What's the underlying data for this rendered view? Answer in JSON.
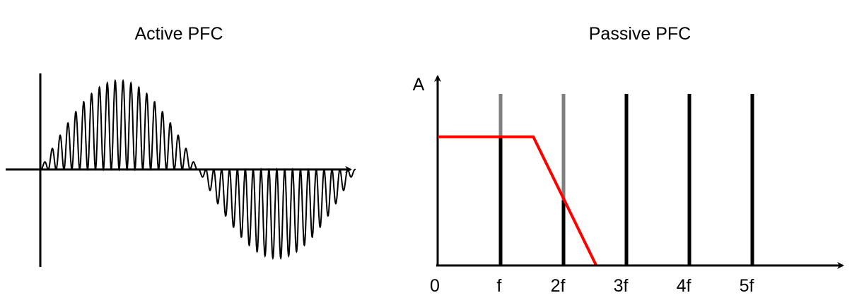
{
  "left_panel": {
    "title": "Active PFC"
  },
  "right_panel": {
    "title": "Passive PFC",
    "y_axis_label": "A",
    "x_tick_labels": [
      "0",
      "f",
      "2f",
      "3f",
      "4f",
      "5f"
    ],
    "harmonics": [
      {
        "label": "f",
        "order": 1,
        "full_amplitude": 1.0,
        "passed_amplitude": 0.75
      },
      {
        "label": "2f",
        "order": 2,
        "full_amplitude": 1.0,
        "passed_amplitude": 0.38
      },
      {
        "label": "3f",
        "order": 3,
        "full_amplitude": 1.0,
        "passed_amplitude": 1.0
      },
      {
        "label": "4f",
        "order": 4,
        "full_amplitude": 1.0,
        "passed_amplitude": 1.0
      },
      {
        "label": "5f",
        "order": 5,
        "full_amplitude": 1.0,
        "passed_amplitude": 1.0
      }
    ],
    "filter_curve": {
      "passband_level": 0.75,
      "corner_frequency_order": 1.52,
      "zero_frequency_order": 2.52
    },
    "colors": {
      "filter": "#ff0000",
      "attenuated": "#808080",
      "passed": "#000000"
    }
  }
}
